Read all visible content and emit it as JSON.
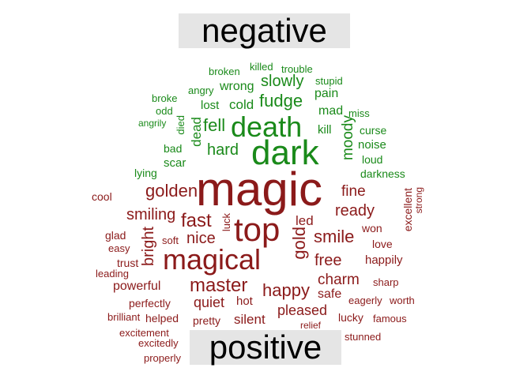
{
  "chart_data": {
    "type": "comparison_wordcloud",
    "groups": [
      {
        "name": "negative",
        "color": "#1a8a1a"
      },
      {
        "name": "positive",
        "color": "#8b1a1a"
      }
    ],
    "words": [
      {
        "text": "dark",
        "group": "negative",
        "size": 44
      },
      {
        "text": "death",
        "group": "negative",
        "size": 36
      },
      {
        "text": "fudge",
        "group": "negative",
        "size": 22
      },
      {
        "text": "slowly",
        "group": "negative",
        "size": 20
      },
      {
        "text": "fell",
        "group": "negative",
        "size": 22
      },
      {
        "text": "hard",
        "group": "negative",
        "size": 20
      },
      {
        "text": "moody",
        "group": "negative",
        "size": 19
      },
      {
        "text": "cold",
        "group": "negative",
        "size": 17
      },
      {
        "text": "wrong",
        "group": "negative",
        "size": 16
      },
      {
        "text": "dead",
        "group": "negative",
        "size": 17
      },
      {
        "text": "mad",
        "group": "negative",
        "size": 16
      },
      {
        "text": "pain",
        "group": "negative",
        "size": 16
      },
      {
        "text": "lost",
        "group": "negative",
        "size": 15
      },
      {
        "text": "kill",
        "group": "negative",
        "size": 15
      },
      {
        "text": "scar",
        "group": "negative",
        "size": 15
      },
      {
        "text": "noise",
        "group": "negative",
        "size": 15
      },
      {
        "text": "curse",
        "group": "negative",
        "size": 14
      },
      {
        "text": "loud",
        "group": "negative",
        "size": 14
      },
      {
        "text": "darkness",
        "group": "negative",
        "size": 14
      },
      {
        "text": "bad",
        "group": "negative",
        "size": 14
      },
      {
        "text": "died",
        "group": "negative",
        "size": 13
      },
      {
        "text": "lying",
        "group": "negative",
        "size": 14
      },
      {
        "text": "miss",
        "group": "negative",
        "size": 13
      },
      {
        "text": "stupid",
        "group": "negative",
        "size": 13
      },
      {
        "text": "trouble",
        "group": "negative",
        "size": 13
      },
      {
        "text": "killed",
        "group": "negative",
        "size": 13
      },
      {
        "text": "broken",
        "group": "negative",
        "size": 13
      },
      {
        "text": "angry",
        "group": "negative",
        "size": 13
      },
      {
        "text": "broke",
        "group": "negative",
        "size": 13
      },
      {
        "text": "odd",
        "group": "negative",
        "size": 13
      },
      {
        "text": "angrily",
        "group": "negative",
        "size": 12
      },
      {
        "text": "magic",
        "group": "positive",
        "size": 60
      },
      {
        "text": "top",
        "group": "positive",
        "size": 42
      },
      {
        "text": "magical",
        "group": "positive",
        "size": 36
      },
      {
        "text": "golden",
        "group": "positive",
        "size": 22
      },
      {
        "text": "fast",
        "group": "positive",
        "size": 24
      },
      {
        "text": "master",
        "group": "positive",
        "size": 24
      },
      {
        "text": "smiling",
        "group": "positive",
        "size": 20
      },
      {
        "text": "nice",
        "group": "positive",
        "size": 20
      },
      {
        "text": "smile",
        "group": "positive",
        "size": 22
      },
      {
        "text": "ready",
        "group": "positive",
        "size": 20
      },
      {
        "text": "happy",
        "group": "positive",
        "size": 22
      },
      {
        "text": "gold",
        "group": "positive",
        "size": 22
      },
      {
        "text": "bright",
        "group": "positive",
        "size": 20
      },
      {
        "text": "free",
        "group": "positive",
        "size": 20
      },
      {
        "text": "fine",
        "group": "positive",
        "size": 19
      },
      {
        "text": "charm",
        "group": "positive",
        "size": 19
      },
      {
        "text": "quiet",
        "group": "positive",
        "size": 18
      },
      {
        "text": "pleased",
        "group": "positive",
        "size": 18
      },
      {
        "text": "led",
        "group": "positive",
        "size": 17
      },
      {
        "text": "powerful",
        "group": "positive",
        "size": 16
      },
      {
        "text": "safe",
        "group": "positive",
        "size": 16
      },
      {
        "text": "silent",
        "group": "positive",
        "size": 17
      },
      {
        "text": "happily",
        "group": "positive",
        "size": 15
      },
      {
        "text": "hot",
        "group": "positive",
        "size": 15
      },
      {
        "text": "pretty",
        "group": "positive",
        "size": 14
      },
      {
        "text": "won",
        "group": "positive",
        "size": 14
      },
      {
        "text": "love",
        "group": "positive",
        "size": 14
      },
      {
        "text": "excellent",
        "group": "positive",
        "size": 14
      },
      {
        "text": "glad",
        "group": "positive",
        "size": 14
      },
      {
        "text": "trust",
        "group": "positive",
        "size": 14
      },
      {
        "text": "cool",
        "group": "positive",
        "size": 14
      },
      {
        "text": "perfectly",
        "group": "positive",
        "size": 14
      },
      {
        "text": "lucky",
        "group": "positive",
        "size": 14
      },
      {
        "text": "helped",
        "group": "positive",
        "size": 14
      },
      {
        "text": "soft",
        "group": "positive",
        "size": 13
      },
      {
        "text": "luck",
        "group": "positive",
        "size": 13
      },
      {
        "text": "easy",
        "group": "positive",
        "size": 13
      },
      {
        "text": "leading",
        "group": "positive",
        "size": 13
      },
      {
        "text": "eagerly",
        "group": "positive",
        "size": 13
      },
      {
        "text": "worth",
        "group": "positive",
        "size": 13
      },
      {
        "text": "famous",
        "group": "positive",
        "size": 13
      },
      {
        "text": "sharp",
        "group": "positive",
        "size": 13
      },
      {
        "text": "strong",
        "group": "positive",
        "size": 12
      },
      {
        "text": "brilliant",
        "group": "positive",
        "size": 13
      },
      {
        "text": "excitement",
        "group": "positive",
        "size": 13
      },
      {
        "text": "excitedly",
        "group": "positive",
        "size": 13
      },
      {
        "text": "properly",
        "group": "positive",
        "size": 13
      },
      {
        "text": "stunned",
        "group": "positive",
        "size": 13
      },
      {
        "text": "relief",
        "group": "positive",
        "size": 12
      }
    ]
  }
}
